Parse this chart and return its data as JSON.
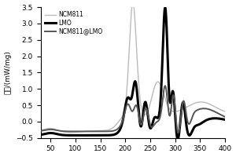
{
  "xlim": [
    30,
    400
  ],
  "ylim": [
    -0.5,
    3.5
  ],
  "xlabel": "",
  "ylabel": "热量/(mW/mg)",
  "xticks": [
    50,
    100,
    150,
    200,
    250,
    300,
    350,
    400
  ],
  "yticks": [
    -0.5,
    0.0,
    0.5,
    1.0,
    1.5,
    2.0,
    2.5,
    3.0,
    3.5
  ],
  "legend": [
    "NCM811",
    "LMO",
    "NCM811@LMO"
  ],
  "legend_colors": [
    "#bbbbbb",
    "#000000",
    "#555555"
  ],
  "legend_linewidths": [
    1.0,
    2.2,
    1.4
  ],
  "legend_linestyles": [
    "-",
    "-",
    "-"
  ],
  "background": "#ffffff",
  "figsize": [
    3.0,
    2.0
  ],
  "dpi": 100
}
